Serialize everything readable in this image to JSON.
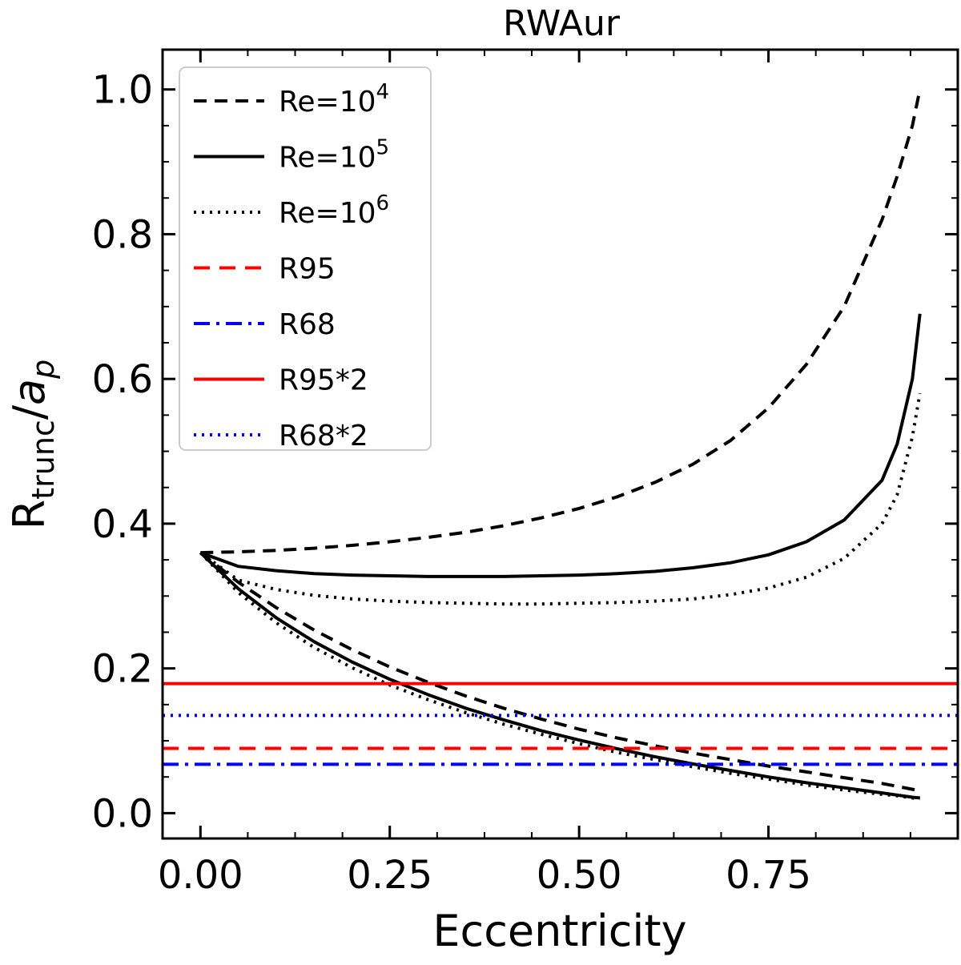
{
  "chart_data": {
    "type": "line",
    "title": "RWAur",
    "xlabel": "Eccentricity",
    "ylabel": {
      "main": "R",
      "sub": "trunc",
      "sep": "/",
      "a": "a",
      "a_sub": "p"
    },
    "xlim": [
      -0.05,
      1.0
    ],
    "ylim": [
      -0.035,
      1.055
    ],
    "xticks": [
      {
        "value": 0.0,
        "label": "0.00"
      },
      {
        "value": 0.25,
        "label": "0.25"
      },
      {
        "value": 0.5,
        "label": "0.50"
      },
      {
        "value": 0.75,
        "label": "0.75"
      }
    ],
    "yticks": [
      {
        "value": 0.0,
        "label": "0.0"
      },
      {
        "value": 0.2,
        "label": "0.2"
      },
      {
        "value": 0.4,
        "label": "0.4"
      },
      {
        "value": 0.6,
        "label": "0.6"
      },
      {
        "value": 0.8,
        "label": "0.8"
      },
      {
        "value": 1.0,
        "label": "1.0"
      }
    ],
    "grid": false,
    "legend_position": "top-left",
    "x": [
      0.0,
      0.05,
      0.1,
      0.15,
      0.2,
      0.25,
      0.3,
      0.35,
      0.4,
      0.45,
      0.5,
      0.55,
      0.6,
      0.65,
      0.7,
      0.75,
      0.8,
      0.85,
      0.9,
      0.92,
      0.94,
      0.95
    ],
    "series": [
      {
        "name": "Re=10⁴",
        "base": "Re=10",
        "exp": "4",
        "color": "#000000",
        "dash": "16 10",
        "y_upper": [
          0.36,
          0.361,
          0.363,
          0.366,
          0.37,
          0.375,
          0.381,
          0.388,
          0.397,
          0.408,
          0.421,
          0.437,
          0.457,
          0.482,
          0.515,
          0.56,
          0.62,
          0.7,
          0.82,
          0.88,
          0.95,
          1.0
        ],
        "y_lower": [
          0.36,
          0.319,
          0.284,
          0.253,
          0.226,
          0.202,
          0.181,
          0.162,
          0.145,
          0.13,
          0.116,
          0.104,
          0.093,
          0.083,
          0.074,
          0.065,
          0.057,
          0.049,
          0.041,
          0.037,
          0.033,
          0.031
        ]
      },
      {
        "name": "Re=10⁵",
        "base": "Re=10",
        "exp": "5",
        "color": "#000000",
        "dash": "",
        "y_upper": [
          0.36,
          0.341,
          0.335,
          0.331,
          0.329,
          0.328,
          0.327,
          0.327,
          0.327,
          0.328,
          0.329,
          0.331,
          0.334,
          0.339,
          0.346,
          0.357,
          0.375,
          0.405,
          0.46,
          0.51,
          0.6,
          0.69
        ],
        "y_lower": [
          0.36,
          0.31,
          0.27,
          0.237,
          0.209,
          0.185,
          0.164,
          0.145,
          0.129,
          0.114,
          0.101,
          0.089,
          0.078,
          0.068,
          0.059,
          0.05,
          0.042,
          0.035,
          0.028,
          0.025,
          0.022,
          0.021
        ]
      },
      {
        "name": "Re=10⁶",
        "base": "Re=10",
        "exp": "6",
        "color": "#000000",
        "dash": "3 7",
        "y_upper": [
          0.36,
          0.322,
          0.309,
          0.301,
          0.296,
          0.293,
          0.291,
          0.29,
          0.289,
          0.289,
          0.29,
          0.291,
          0.293,
          0.296,
          0.302,
          0.311,
          0.326,
          0.352,
          0.4,
          0.44,
          0.52,
          0.58
        ],
        "y_lower": [
          0.36,
          0.305,
          0.263,
          0.229,
          0.201,
          0.177,
          0.157,
          0.139,
          0.123,
          0.109,
          0.096,
          0.084,
          0.074,
          0.064,
          0.055,
          0.047,
          0.039,
          0.032,
          0.026,
          0.024,
          0.021,
          0.02
        ]
      },
      {
        "name": "R95",
        "color": "#ff0000",
        "dash": "20 12",
        "y_const": 0.0895
      },
      {
        "name": "R68",
        "color": "#0000ff",
        "dash": "20 8 4 8",
        "y_const": 0.0675
      },
      {
        "name": "R95*2",
        "color": "#ff0000",
        "dash": "",
        "y_const": 0.179
      },
      {
        "name": "R68*2",
        "color": "#0000ff",
        "dash": "3 7",
        "y_const": 0.135
      }
    ]
  }
}
